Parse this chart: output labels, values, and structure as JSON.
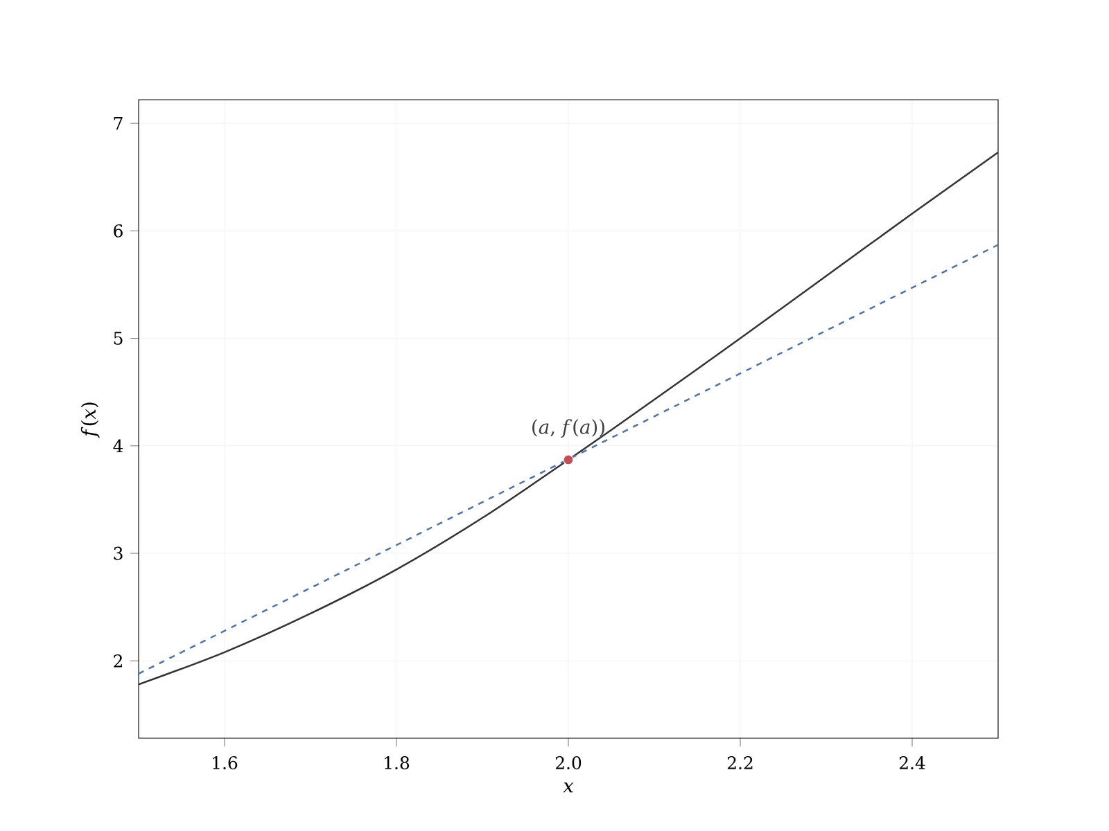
{
  "chart_data": {
    "type": "line",
    "xlabel": "x",
    "ylabel": "*f*(*x*)",
    "xlim": [
      1.5,
      2.5
    ],
    "ylim": [
      1.28,
      7.22
    ],
    "xticks": [
      1.6,
      1.8,
      {
        "value": 2.0,
        "label": "2.0"
      },
      2.2,
      2.4
    ],
    "yticks": [
      2,
      3,
      4,
      5,
      6,
      7
    ],
    "grid": true,
    "annotations": [
      {
        "text": "(*a*, *f*(*a*))",
        "x": 2.0,
        "y": 3.87
      }
    ],
    "series": [
      {
        "color": "#333333",
        "line_style": "solid",
        "marker": "none",
        "x": [
          1.5,
          1.6,
          1.7,
          1.8,
          1.9,
          2.0,
          2.1,
          2.2,
          2.3,
          2.4,
          2.5
        ],
        "values": [
          1.78,
          2.08,
          2.44,
          2.85,
          3.33,
          3.87,
          4.43,
          5.0,
          5.58,
          6.16,
          6.73
        ]
      },
      {
        "color": "#4c72b0",
        "line_style": "dashed",
        "marker": "none",
        "x": [
          1.5,
          2.5
        ],
        "values": [
          1.88,
          5.87
        ]
      },
      {
        "type": "scatter",
        "color": "#c44e52",
        "marker": "circle",
        "x": [
          2.0
        ],
        "values": [
          3.87
        ]
      }
    ]
  }
}
